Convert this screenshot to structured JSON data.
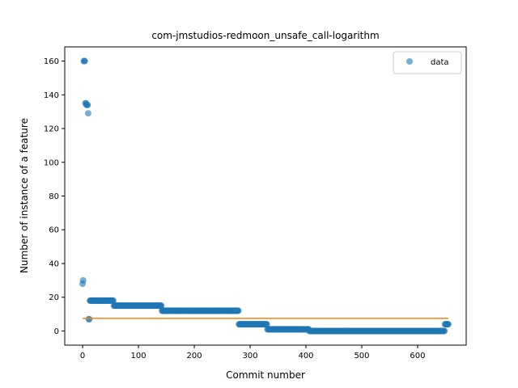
{
  "chart_data": {
    "type": "scatter",
    "title": "com-jmstudios-redmoon_unsafe_call-logarithm",
    "xlabel": "Commit number",
    "ylabel": "Number of instance of a feature",
    "xlim": [
      -32,
      687
    ],
    "ylim": [
      -8.4,
      168.4
    ],
    "xticks": [
      0,
      100,
      200,
      300,
      400,
      500,
      600
    ],
    "yticks": [
      0,
      20,
      40,
      60,
      80,
      100,
      120,
      140,
      160
    ],
    "grid": false,
    "legend_position": "top-right",
    "series": [
      {
        "name": "data",
        "kind": "scatter",
        "color": "#1f77b4",
        "alpha": 0.6,
        "segments": [
          {
            "x_start": 0,
            "x_end": 0,
            "y": 28
          },
          {
            "x_start": 1,
            "x_end": 1,
            "y": 30
          },
          {
            "x_start": 2,
            "x_end": 4,
            "y": 160
          },
          {
            "x_start": 5,
            "x_end": 6,
            "y": 135
          },
          {
            "x_start": 7,
            "x_end": 9,
            "y": 134
          },
          {
            "x_start": 10,
            "x_end": 10,
            "y": 129
          },
          {
            "x_start": 11,
            "x_end": 12,
            "y": 7
          },
          {
            "x_start": 13,
            "x_end": 55,
            "y": 18
          },
          {
            "x_start": 56,
            "x_end": 141,
            "y": 15
          },
          {
            "x_start": 142,
            "x_end": 279,
            "y": 12
          },
          {
            "x_start": 280,
            "x_end": 330,
            "y": 4
          },
          {
            "x_start": 331,
            "x_end": 405,
            "y": 1
          },
          {
            "x_start": 406,
            "x_end": 648,
            "y": 0
          },
          {
            "x_start": 649,
            "x_end": 655,
            "y": 4
          }
        ]
      },
      {
        "name": "",
        "kind": "line",
        "color": "#ff7f0e",
        "x": [
          0,
          655
        ],
        "y": [
          7.5,
          7.5
        ]
      }
    ],
    "legend": [
      {
        "label": "data",
        "marker": "circle",
        "color": "#1f77b4"
      }
    ]
  }
}
